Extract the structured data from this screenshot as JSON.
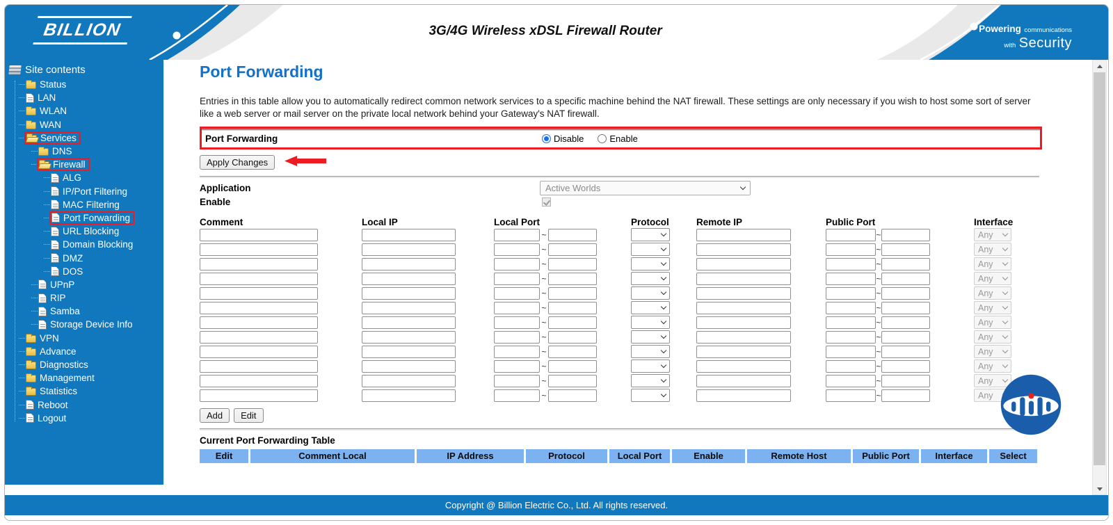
{
  "header": {
    "brand": "BILLION",
    "title": "3G/4G Wireless xDSL Firewall Router",
    "tagline": {
      "bold": "Powering",
      "rest": "communications",
      "small": "with",
      "big": "Security"
    }
  },
  "sidebar": {
    "title": "Site contents",
    "items": [
      {
        "label": "Status",
        "icon": "folder",
        "level": 1
      },
      {
        "label": "LAN",
        "icon": "file",
        "level": 1
      },
      {
        "label": "WLAN",
        "icon": "folder",
        "level": 1
      },
      {
        "label": "WAN",
        "icon": "folder",
        "level": 1
      },
      {
        "label": "Services",
        "icon": "folder-open",
        "level": 1,
        "highlight": true
      },
      {
        "label": "DNS",
        "icon": "folder",
        "level": 2
      },
      {
        "label": "Firewall",
        "icon": "folder-open",
        "level": 2,
        "highlight": true
      },
      {
        "label": "ALG",
        "icon": "file",
        "level": 3
      },
      {
        "label": "IP/Port Filtering",
        "icon": "file",
        "level": 3
      },
      {
        "label": "MAC Filtering",
        "icon": "file",
        "level": 3
      },
      {
        "label": "Port Forwarding",
        "icon": "file",
        "level": 3,
        "highlight": true
      },
      {
        "label": "URL Blocking",
        "icon": "file",
        "level": 3
      },
      {
        "label": "Domain Blocking",
        "icon": "file",
        "level": 3
      },
      {
        "label": "DMZ",
        "icon": "file",
        "level": 3
      },
      {
        "label": "DOS",
        "icon": "file",
        "level": 3
      },
      {
        "label": "UPnP",
        "icon": "file",
        "level": 2
      },
      {
        "label": "RIP",
        "icon": "file",
        "level": 2
      },
      {
        "label": "Samba",
        "icon": "file",
        "level": 2
      },
      {
        "label": "Storage Device Info",
        "icon": "file",
        "level": 2
      },
      {
        "label": "VPN",
        "icon": "folder",
        "level": 1
      },
      {
        "label": "Advance",
        "icon": "folder",
        "level": 1
      },
      {
        "label": "Diagnostics",
        "icon": "folder",
        "level": 1
      },
      {
        "label": "Management",
        "icon": "folder",
        "level": 1
      },
      {
        "label": "Statistics",
        "icon": "folder",
        "level": 1
      },
      {
        "label": "Reboot",
        "icon": "file",
        "level": 1
      },
      {
        "label": "Logout",
        "icon": "file",
        "level": 1
      }
    ]
  },
  "main": {
    "heading": "Port Forwarding",
    "description": "Entries in this table allow you to automatically redirect common network services to a specific machine behind the NAT firewall. These settings are only necessary if you wish to host some sort of server like a web server or mail server on the private local network behind your Gateway's NAT firewall.",
    "toggle": {
      "label": "Port Forwarding",
      "options": [
        "Disable",
        "Enable"
      ],
      "selected": "Disable"
    },
    "buttons": {
      "apply": "Apply Changes",
      "add": "Add",
      "edit": "Edit"
    },
    "application": {
      "label": "Application",
      "value": "Active Worlds"
    },
    "enable_label": "Enable",
    "grid": {
      "columns": [
        "Comment",
        "Local IP",
        "Local Port",
        "Protocol",
        "Remote IP",
        "Public Port",
        "Interface"
      ],
      "row_count": 12,
      "interface_value": "Any",
      "protocol_value": "",
      "tilde": "~"
    },
    "table": {
      "title": "Current Port Forwarding Table",
      "columns": [
        "Edit",
        "Comment Local",
        "IP Address",
        "Protocol",
        "Local Port",
        "Enable",
        "Remote Host",
        "Public Port",
        "Interface",
        "Select"
      ]
    }
  },
  "footer": {
    "copyright": "Copyright @ Billion Electric Co., Ltd. All rights reserved."
  },
  "colors": {
    "brand_blue": "#1278be",
    "table_header_blue": "#7db2f0",
    "heading_blue": "#1571c8",
    "annotation_red": "#ec1c24",
    "logo_navy": "#1a5dab"
  }
}
